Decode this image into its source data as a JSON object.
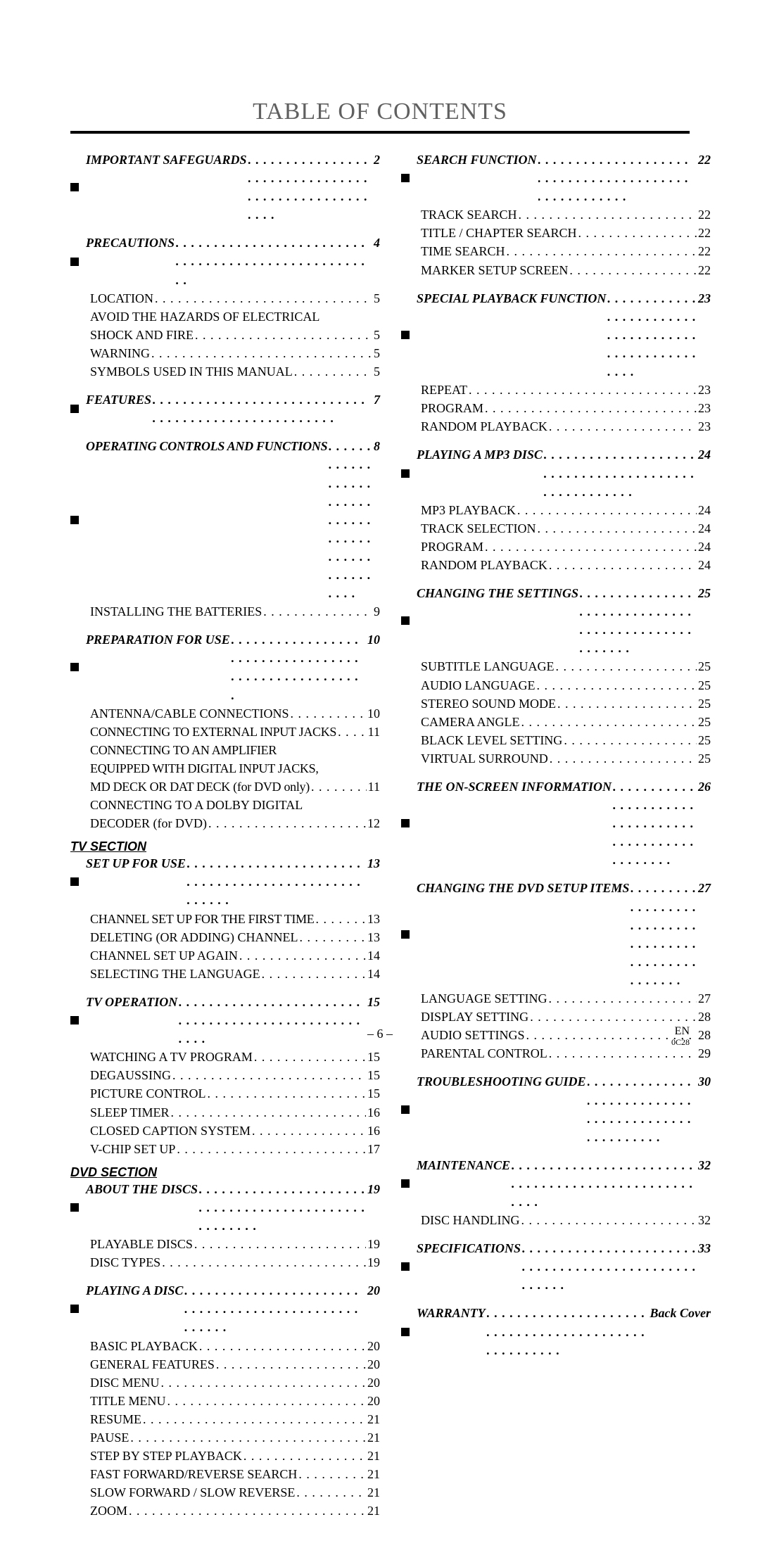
{
  "title": "TABLE OF CONTENTS",
  "footer_page": "– 6 –",
  "footer_right_top": "EN",
  "footer_right_bottom": "0C28",
  "left": [
    {
      "type": "head",
      "first": true,
      "label": "IMPORTANT SAFEGUARDS",
      "page": "2"
    },
    {
      "type": "head",
      "label": "PRECAUTIONS",
      "page": "4"
    },
    {
      "type": "sub",
      "label": "LOCATION",
      "page": "5"
    },
    {
      "type": "sub",
      "multi": [
        "AVOID THE HAZARDS OF ELECTRICAL",
        "SHOCK AND FIRE"
      ],
      "page": "5"
    },
    {
      "type": "sub",
      "label": "WARNING",
      "page": "5"
    },
    {
      "type": "sub",
      "label": "SYMBOLS USED IN THIS MANUAL",
      "page": "5"
    },
    {
      "type": "head",
      "label": "FEATURES",
      "page": "7"
    },
    {
      "type": "head",
      "label": "OPERATING CONTROLS AND FUNCTIONS",
      "page": "8",
      "tight": true
    },
    {
      "type": "sub",
      "label": "INSTALLING THE BATTERIES",
      "page": "9"
    },
    {
      "type": "head",
      "label": "PREPARATION FOR USE",
      "page": "10"
    },
    {
      "type": "sub",
      "label": "ANTENNA/CABLE CONNECTIONS",
      "page": "10"
    },
    {
      "type": "sub",
      "label": "CONNECTING TO EXTERNAL INPUT JACKS",
      "page": "11",
      "tight": true
    },
    {
      "type": "sub",
      "multi": [
        "CONNECTING TO AN AMPLIFIER",
        "EQUIPPED WITH DIGITAL INPUT JACKS,",
        "MD DECK OR DAT DECK (for DVD only)"
      ],
      "page": "11",
      "tight": true
    },
    {
      "type": "sub",
      "multi": [
        "CONNECTING TO A DOLBY DIGITAL",
        "DECODER (for DVD)"
      ],
      "page": "12"
    },
    {
      "type": "divider",
      "label": "TV SECTION"
    },
    {
      "type": "head",
      "label": "SET UP FOR USE",
      "page": "13",
      "nogap": true
    },
    {
      "type": "sub",
      "label": "CHANNEL SET UP FOR THE FIRST TIME",
      "page": "13",
      "tight": true
    },
    {
      "type": "sub",
      "label": "DELETING (OR ADDING) CHANNEL",
      "page": "13"
    },
    {
      "type": "sub",
      "label": "CHANNEL SET UP AGAIN",
      "page": "14"
    },
    {
      "type": "sub",
      "label": "SELECTING THE LANGUAGE",
      "page": "14"
    },
    {
      "type": "head",
      "label": "TV OPERATION",
      "page": "15"
    },
    {
      "type": "sub",
      "label": "WATCHING A TV PROGRAM",
      "page": "15"
    },
    {
      "type": "sub",
      "label": "DEGAUSSING",
      "page": "15"
    },
    {
      "type": "sub",
      "label": "PICTURE CONTROL",
      "page": "15"
    },
    {
      "type": "sub",
      "label": "SLEEP TIMER",
      "page": "16"
    },
    {
      "type": "sub",
      "label": "CLOSED CAPTION SYSTEM",
      "page": "16"
    },
    {
      "type": "sub",
      "label": "V-CHIP SET UP",
      "page": "17"
    },
    {
      "type": "divider",
      "label": "DVD SECTION"
    },
    {
      "type": "head",
      "label": "ABOUT THE DISCS",
      "page": "19",
      "nogap": true
    },
    {
      "type": "sub",
      "label": "PLAYABLE DISCS",
      "page": "19"
    },
    {
      "type": "sub",
      "label": "DISC TYPES",
      "page": "19"
    },
    {
      "type": "head",
      "label": "PLAYING A DISC",
      "page": "20"
    },
    {
      "type": "sub",
      "label": "BASIC PLAYBACK",
      "page": "20"
    },
    {
      "type": "sub",
      "label": "GENERAL FEATURES",
      "page": "20"
    },
    {
      "type": "sub",
      "label": "DISC MENU",
      "page": "20"
    },
    {
      "type": "sub",
      "label": "TITLE MENU",
      "page": "20"
    },
    {
      "type": "sub",
      "label": "RESUME",
      "page": "21"
    },
    {
      "type": "sub",
      "label": "PAUSE",
      "page": "21"
    },
    {
      "type": "sub",
      "label": "STEP BY STEP PLAYBACK",
      "page": "21"
    },
    {
      "type": "sub",
      "label": "FAST FORWARD/REVERSE SEARCH",
      "page": "21"
    },
    {
      "type": "sub",
      "label": "SLOW FORWARD / SLOW REVERSE",
      "page": "21"
    },
    {
      "type": "sub",
      "label": "ZOOM",
      "page": "21"
    }
  ],
  "right": [
    {
      "type": "head",
      "first": true,
      "label": "SEARCH FUNCTION",
      "page": "22"
    },
    {
      "type": "sub",
      "label": "TRACK SEARCH",
      "page": "22"
    },
    {
      "type": "sub",
      "label": "TITLE / CHAPTER SEARCH",
      "page": "22"
    },
    {
      "type": "sub",
      "label": "TIME SEARCH",
      "page": "22"
    },
    {
      "type": "sub",
      "label": "MARKER SETUP SCREEN",
      "page": "22"
    },
    {
      "type": "head",
      "label": "SPECIAL PLAYBACK FUNCTION",
      "page": "23"
    },
    {
      "type": "sub",
      "label": "REPEAT",
      "page": "23"
    },
    {
      "type": "sub",
      "label": "PROGRAM",
      "page": "23"
    },
    {
      "type": "sub",
      "label": "RANDOM PLAYBACK",
      "page": "23"
    },
    {
      "type": "head",
      "label": "PLAYING A MP3 DISC",
      "page": "24"
    },
    {
      "type": "sub",
      "label": "MP3 PLAYBACK",
      "page": "24"
    },
    {
      "type": "sub",
      "label": "TRACK SELECTION",
      "page": "24"
    },
    {
      "type": "sub",
      "label": "PROGRAM",
      "page": "24"
    },
    {
      "type": "sub",
      "label": "RANDOM PLAYBACK",
      "page": "24"
    },
    {
      "type": "head",
      "label": "CHANGING THE SETTINGS",
      "page": "25"
    },
    {
      "type": "sub",
      "label": "SUBTITLE LANGUAGE",
      "page": "25"
    },
    {
      "type": "sub",
      "label": "AUDIO LANGUAGE",
      "page": "25"
    },
    {
      "type": "sub",
      "label": "STEREO SOUND MODE",
      "page": "25"
    },
    {
      "type": "sub",
      "label": "CAMERA ANGLE",
      "page": "25"
    },
    {
      "type": "sub",
      "label": "BLACK LEVEL SETTING",
      "page": "25"
    },
    {
      "type": "sub",
      "label": "VIRTUAL SURROUND",
      "page": "25"
    },
    {
      "type": "head",
      "label": "THE ON-SCREEN INFORMATION",
      "page": "26"
    },
    {
      "type": "head",
      "label": "CHANGING THE DVD SETUP ITEMS",
      "page": "27"
    },
    {
      "type": "sub",
      "label": "LANGUAGE SETTING",
      "page": "27"
    },
    {
      "type": "sub",
      "label": "DISPLAY SETTING",
      "page": "28"
    },
    {
      "type": "sub",
      "label": "AUDIO SETTINGS",
      "page": "28"
    },
    {
      "type": "sub",
      "label": "PARENTAL CONTROL",
      "page": "29"
    },
    {
      "type": "head",
      "label": "TROUBLESHOOTING GUIDE",
      "page": "30"
    },
    {
      "type": "head",
      "label": "MAINTENANCE",
      "page": "32"
    },
    {
      "type": "sub",
      "label": "DISC HANDLING",
      "page": "32"
    },
    {
      "type": "head",
      "label": "SPECIFICATIONS",
      "page": "33"
    },
    {
      "type": "head",
      "label": "WARRANTY",
      "page": "Back Cover"
    }
  ]
}
